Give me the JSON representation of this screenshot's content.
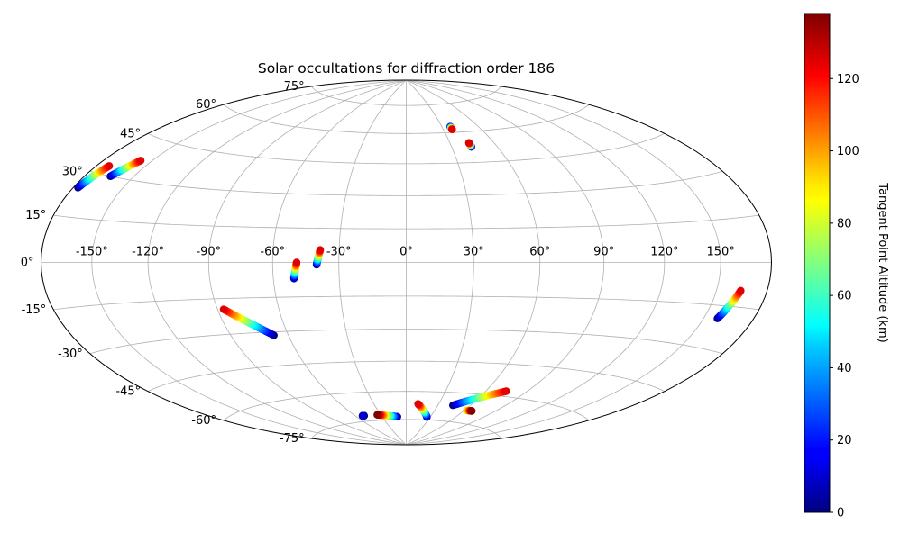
{
  "chart_data": {
    "type": "scatter",
    "projection": "hammer",
    "title": "Solar occultations for diffraction order 186",
    "grid": true,
    "longitude_ticks": [
      -150,
      -120,
      -90,
      -60,
      -30,
      0,
      30,
      60,
      90,
      120,
      150
    ],
    "longitude_tick_labels": [
      "-150°",
      "-120°",
      "-90°",
      "-60°",
      "-30°",
      "0°",
      "30°",
      "60°",
      "90°",
      "120°",
      "150°"
    ],
    "latitude_ticks": [
      -75,
      -60,
      -45,
      -30,
      -15,
      0,
      15,
      30,
      45,
      60,
      75
    ],
    "latitude_tick_labels": [
      "-75°",
      "-60°",
      "-45°",
      "-30°",
      "-15°",
      "0°",
      "15°",
      "30°",
      "45°",
      "60°",
      "75°"
    ],
    "colorbar": {
      "label": "Tangent Point Altitude (km)",
      "colormap": "jet",
      "range": [
        0,
        138
      ],
      "ticks": [
        0,
        20,
        40,
        60,
        80,
        100,
        120
      ],
      "tick_labels": [
        "0",
        "20",
        "40",
        "60",
        "80",
        "100",
        "120"
      ]
    },
    "color_encodes": "Tangent Point Altitude (km)",
    "tracks": [
      {
        "lon_start": -177,
        "lat_start": 24.5,
        "lon_end": -172,
        "lat_end": 33,
        "alt_start": 0,
        "alt_end": 125
      },
      {
        "lon_start": -164,
        "lat_start": 30,
        "lon_end": -157,
        "lat_end": 37,
        "alt_start": 0,
        "alt_end": 125
      },
      {
        "lon_start": -50.5,
        "lat_start": -7,
        "lon_end": -49,
        "lat_end": 0,
        "alt_start": 0,
        "alt_end": 125
      },
      {
        "lon_start": -40,
        "lat_start": -1,
        "lon_end": -38.5,
        "lat_end": 5.5,
        "alt_start": 0,
        "alt_end": 125
      },
      {
        "lon_start": 158,
        "lat_start": -19.5,
        "lon_end": 164,
        "lat_end": -9.5,
        "alt_start": 0,
        "alt_end": 125
      },
      {
        "lon_start": 37,
        "lat_start": 63,
        "lon_end": 37,
        "lat_end": 61.5,
        "alt_start": 0,
        "alt_end": 125
      },
      {
        "lon_start": 43,
        "lat_start": 52.5,
        "lon_end": 43,
        "lat_end": 54.5,
        "alt_start": 0,
        "alt_end": 125
      },
      {
        "lon_start": -67.5,
        "lat_start": -31.5,
        "lon_end": -87,
        "lat_end": -19.5,
        "alt_start": 0,
        "alt_end": 125
      },
      {
        "lon_start": -50,
        "lat_start": -72,
        "lon_end": -52,
        "lat_end": -72,
        "alt_start": 0,
        "alt_end": 10
      },
      {
        "lon_start": -11,
        "lat_start": -73.5,
        "lon_end": -34,
        "lat_end": -72,
        "alt_start": 0,
        "alt_end": 138
      },
      {
        "lon_start": 26,
        "lat_start": -73.5,
        "lon_end": 11,
        "lat_end": -66.5,
        "alt_start": 0,
        "alt_end": 125
      },
      {
        "lon_start": 44,
        "lat_start": -66.5,
        "lon_end": 75,
        "lat_end": -57.5,
        "alt_start": 0,
        "alt_end": 125
      },
      {
        "lon_start": 62,
        "lat_start": -68.5,
        "lon_end": 68,
        "lat_end": -68.5,
        "alt_start": 70,
        "alt_end": 138
      }
    ]
  }
}
